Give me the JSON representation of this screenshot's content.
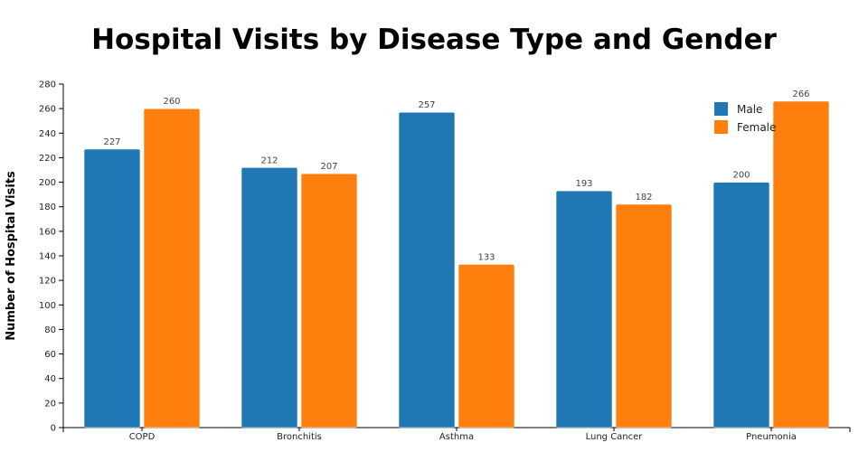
{
  "chart_data": {
    "type": "bar",
    "title": "Hospital Visits by Disease Type and Gender",
    "xlabel": "",
    "ylabel": "Number of Hospital Visits",
    "ylim": [
      0,
      280
    ],
    "yticks": [
      0,
      20,
      40,
      60,
      80,
      100,
      120,
      140,
      160,
      180,
      200,
      220,
      240,
      260,
      280
    ],
    "categories": [
      "COPD",
      "Bronchitis",
      "Asthma",
      "Lung Cancer",
      "Pneumonia"
    ],
    "series": [
      {
        "name": "Male",
        "color": "#1f77b4",
        "values": [
          227,
          212,
          257,
          193,
          200
        ]
      },
      {
        "name": "Female",
        "color": "#ff7f0e",
        "values": [
          260,
          207,
          133,
          182,
          266
        ]
      }
    ],
    "legend_position": "top-right",
    "grid": false
  }
}
